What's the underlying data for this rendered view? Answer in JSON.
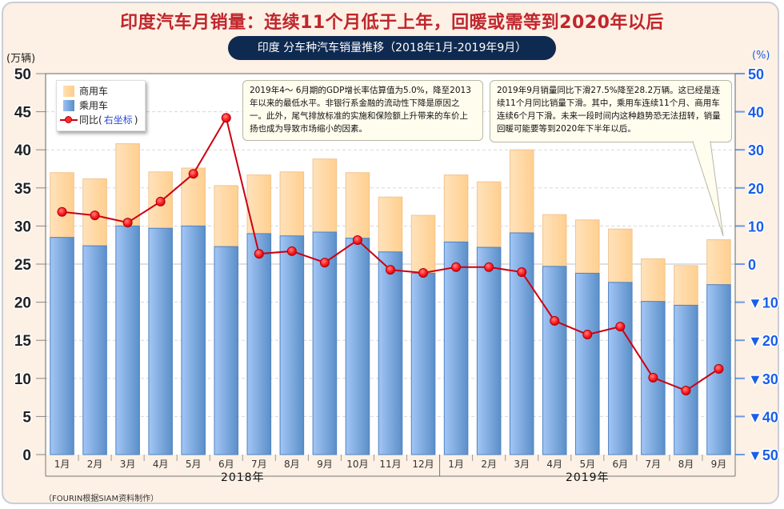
{
  "title": "印度汽车月销量：连续11个月低于上年，回暖或需等到2020年以后",
  "subtitle": "印度  分车种汽车销量推移（2018年1月-2019年9月）",
  "source": "（FOURIN根据SIAM资料制作）",
  "legend": {
    "commercial": "商用车",
    "passenger": "乘用车",
    "yoy_prefix": "同比(",
    "yoy_axis": "右坐标",
    "yoy_suffix": ")"
  },
  "notes": [
    "2019年4～ 6月期的GDP增长率估算值为5.0%，降至2013年以来的最低水平。非银行系金融的流动性下降是原因之一。此外，尾气排放标准的实施和保险额上升带来的车价上扬也成为导致市场缩小的因素。",
    "2019年9月销量同比下滑27.5%降至28.2万辆。这已经是连续11个月同比销量下滑。其中，乘用车连续11个月、商用车连续6个月下滑。未来一段时间内这种趋势恐无法扭转，销量回暖可能要等到2020年下半年以后。"
  ],
  "colors": {
    "title": "#c0262d",
    "passenger": "#5a8ec8",
    "commercial": "#ffcc88",
    "line": "#cc0011",
    "right_axis": "#1a5ee8"
  },
  "chart_data": {
    "type": "bar",
    "title": "印度  分车种汽车销量推移（2018年1月-2019年9月）",
    "ylabel": "(万辆)",
    "y2label": "(%)",
    "ylim": [
      0,
      50
    ],
    "yticks": [
      0,
      5,
      10,
      15,
      20,
      25,
      30,
      35,
      40,
      45,
      50
    ],
    "y2lim": [
      -50,
      50
    ],
    "y2ticks": [
      50,
      40,
      30,
      20,
      10,
      0,
      -10,
      -20,
      -30,
      -40,
      -50
    ],
    "y2tick_labels": [
      "50",
      "40",
      "30",
      "20",
      "10",
      "0",
      "▼10",
      "▼20",
      "▼30",
      "▼40",
      "▼50"
    ],
    "grid": true,
    "legend_position": "top-left",
    "categories": [
      "1月",
      "2月",
      "3月",
      "4月",
      "5月",
      "6月",
      "7月",
      "8月",
      "9月",
      "10月",
      "11月",
      "12月",
      "1月",
      "2月",
      "3月",
      "4月",
      "5月",
      "6月",
      "7月",
      "8月",
      "9月"
    ],
    "groups": [
      {
        "label": "2018年",
        "count": 12
      },
      {
        "label": "2019年",
        "count": 9
      }
    ],
    "series": [
      {
        "name": "乘用车",
        "type": "stacked-bar",
        "axis": "left",
        "values": [
          28.5,
          27.4,
          30.0,
          29.7,
          30.0,
          27.3,
          29.0,
          28.7,
          29.2,
          28.4,
          26.6,
          23.8,
          27.9,
          27.2,
          29.1,
          24.7,
          23.8,
          22.6,
          20.1,
          19.6,
          22.3
        ]
      },
      {
        "name": "商用车",
        "type": "stacked-bar",
        "axis": "left",
        "values": [
          8.5,
          8.8,
          10.8,
          7.4,
          7.6,
          8.0,
          7.7,
          8.4,
          9.6,
          8.6,
          7.2,
          7.6,
          8.8,
          8.6,
          10.9,
          6.8,
          7.0,
          7.0,
          5.6,
          5.2,
          5.9
        ]
      },
      {
        "name": "同比(右坐标)",
        "type": "line",
        "axis": "right",
        "values": [
          13.7,
          12.8,
          10.9,
          16.4,
          23.7,
          38.4,
          2.7,
          3.4,
          0.4,
          6.3,
          -1.5,
          -2.3,
          -0.8,
          -0.8,
          -2.1,
          -14.9,
          -18.5,
          -16.4,
          -29.8,
          -33.2,
          -27.5
        ]
      }
    ]
  }
}
